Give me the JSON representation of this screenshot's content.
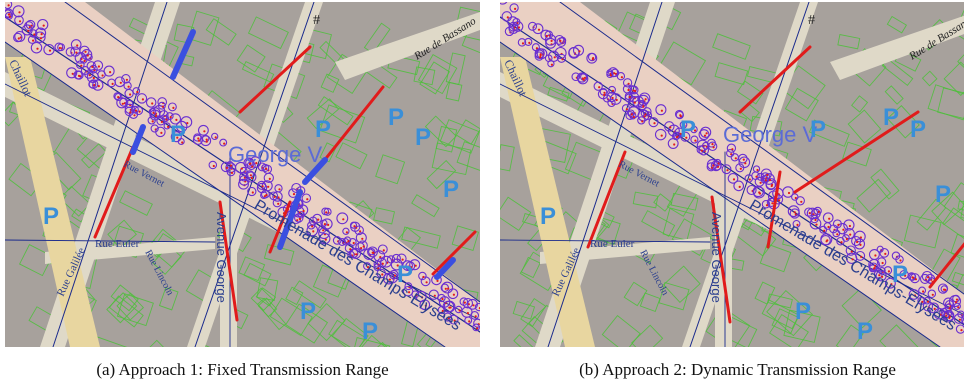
{
  "figure": {
    "panels": [
      {
        "id": "a",
        "caption": "(a) Approach 1: Fixed Transmission Range",
        "map_labels": {
          "rue_bassano": "Rue de Bassano",
          "george_v": "George V",
          "avenue_george": "Avenue George",
          "rue_euler": "Rue Euler",
          "rue_vernet": "Rue Vernet",
          "champs": "Promenade des Champs-Elysées",
          "chaillot": "Chaillot",
          "rue_galilee": "Rue Galilée",
          "rue_lincoln": "Rue Lincoln",
          "parking": "P",
          "crossing": "#"
        }
      },
      {
        "id": "b",
        "caption": "(b) Approach 2: Dynamic Transmission Range",
        "map_labels": {
          "rue_bassano": "Rue de Bassano",
          "george_v": "George V",
          "avenue_george": "Avenue George",
          "rue_euler": "Rue Euler",
          "rue_vernet": "Rue Vernet",
          "champs": "Promenade des Champs-Elysées",
          "chaillot": "Chaillot",
          "rue_galilee": "Rue Galilée",
          "rue_lincoln": "Rue Lincoln",
          "parking": "P",
          "crossing": "#"
        }
      }
    ],
    "colors": {
      "block": "#a7a19c",
      "street": "#dfd9c8",
      "avenue": "#ead0c3",
      "building_outline": "#4cbf3a",
      "road_line": "#1a2a8c",
      "vehicle_circle": "#6a2fd0",
      "vehicle_dot": "#e11b1b",
      "parking_icon": "#3a8fd8",
      "road_label": "#2b3f8f",
      "label_dark": "#222222"
    }
  }
}
